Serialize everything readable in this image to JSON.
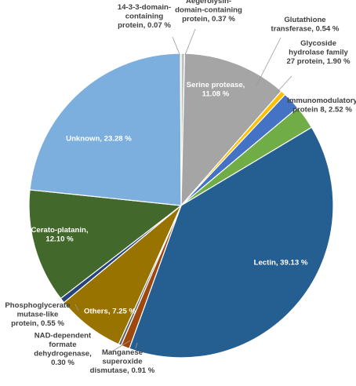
{
  "chart_data": {
    "type": "pie",
    "title": "",
    "slices": [
      {
        "label": "Aegerolysin-domain-containing protein, 0.37 %",
        "name": "Aegerolysin-domain-containing protein",
        "value": 0.37,
        "color": "#c0c0c0"
      },
      {
        "label": "Serine protease, 11.08 %",
        "name": "Serine protease",
        "value": 11.08,
        "color": "#a5a5a5"
      },
      {
        "label": "Glutathione transferase, 0.54 %",
        "name": "Glutathione transferase",
        "value": 0.54,
        "color": "#ffc000"
      },
      {
        "label": "Glycoside hydrolase family 27 protein, 1.90 %",
        "name": "Glycoside hydrolase family 27 protein",
        "value": 1.9,
        "color": "#4472c4"
      },
      {
        "label": "Immunomodulatory protein 8, 2.52 %",
        "name": "Immunomodulatory protein 8",
        "value": 2.52,
        "color": "#70ad47"
      },
      {
        "label": "Lectin, 39.13 %",
        "name": "Lectin",
        "value": 39.13,
        "color": "#255e91"
      },
      {
        "label": "Manganese superoxide dismutase, 0.91 %",
        "name": "Manganese superoxide dismutase",
        "value": 0.91,
        "color": "#9e480e"
      },
      {
        "label": "NAD-dependent formate dehydrogenase, 0.30 %",
        "name": "NAD-dependent formate dehydrogenase",
        "value": 0.3,
        "color": "#636363"
      },
      {
        "label": "Others, 7.25 %",
        "name": "Others",
        "value": 7.25,
        "color": "#997300"
      },
      {
        "label": "Phosphoglycerate mutase-like protein, 0.55 %",
        "name": "Phosphoglycerate mutase-like protein",
        "value": 0.55,
        "color": "#264478"
      },
      {
        "label": "Cerato-platanin, 12.10 %",
        "name": "Cerato-platanin",
        "value": 12.1,
        "color": "#43682b"
      },
      {
        "label": "Unknown, 23.28 %",
        "name": "Unknown",
        "value": 23.28,
        "color": "#7cafdd"
      },
      {
        "label": "14-3-3-domain-containing protein, 0.07 %",
        "name": "14-3-3-domain-containing protein",
        "value": 0.07,
        "color": "#ed7d31"
      }
    ],
    "label_text": [
      [
        "Aegerolysin-",
        "domain-containing",
        "protein, 0.37 %"
      ],
      [
        "Serine protease,",
        "11.08 %"
      ],
      [
        "Glutathione",
        "transferase, 0.54 %"
      ],
      [
        "Glycoside",
        "hydrolase family",
        "27 protein, 1.90 %"
      ],
      [
        "Immunomodulatory",
        "protein 8, 2.52 %"
      ],
      [
        "Lectin, 39.13 %"
      ],
      [
        "Manganese",
        "superoxide",
        "dismutase, 0.91 %"
      ],
      [
        "NAD-dependent",
        "formate",
        "dehydrogenase,",
        "0.30 %"
      ],
      [
        "Others, 7.25 %"
      ],
      [
        "Phosphoglycerate",
        "mutase-like",
        "protein, 0.55 %"
      ],
      [
        "Cerato-platanin,",
        "12.10 %"
      ],
      [
        "Unknown, 23.28 %"
      ],
      [
        "14-3-3-domain-",
        "containing",
        "protein, 0.07 %"
      ]
    ],
    "legend": "none",
    "start_angle_deg": 0,
    "direction": "clockwise"
  }
}
